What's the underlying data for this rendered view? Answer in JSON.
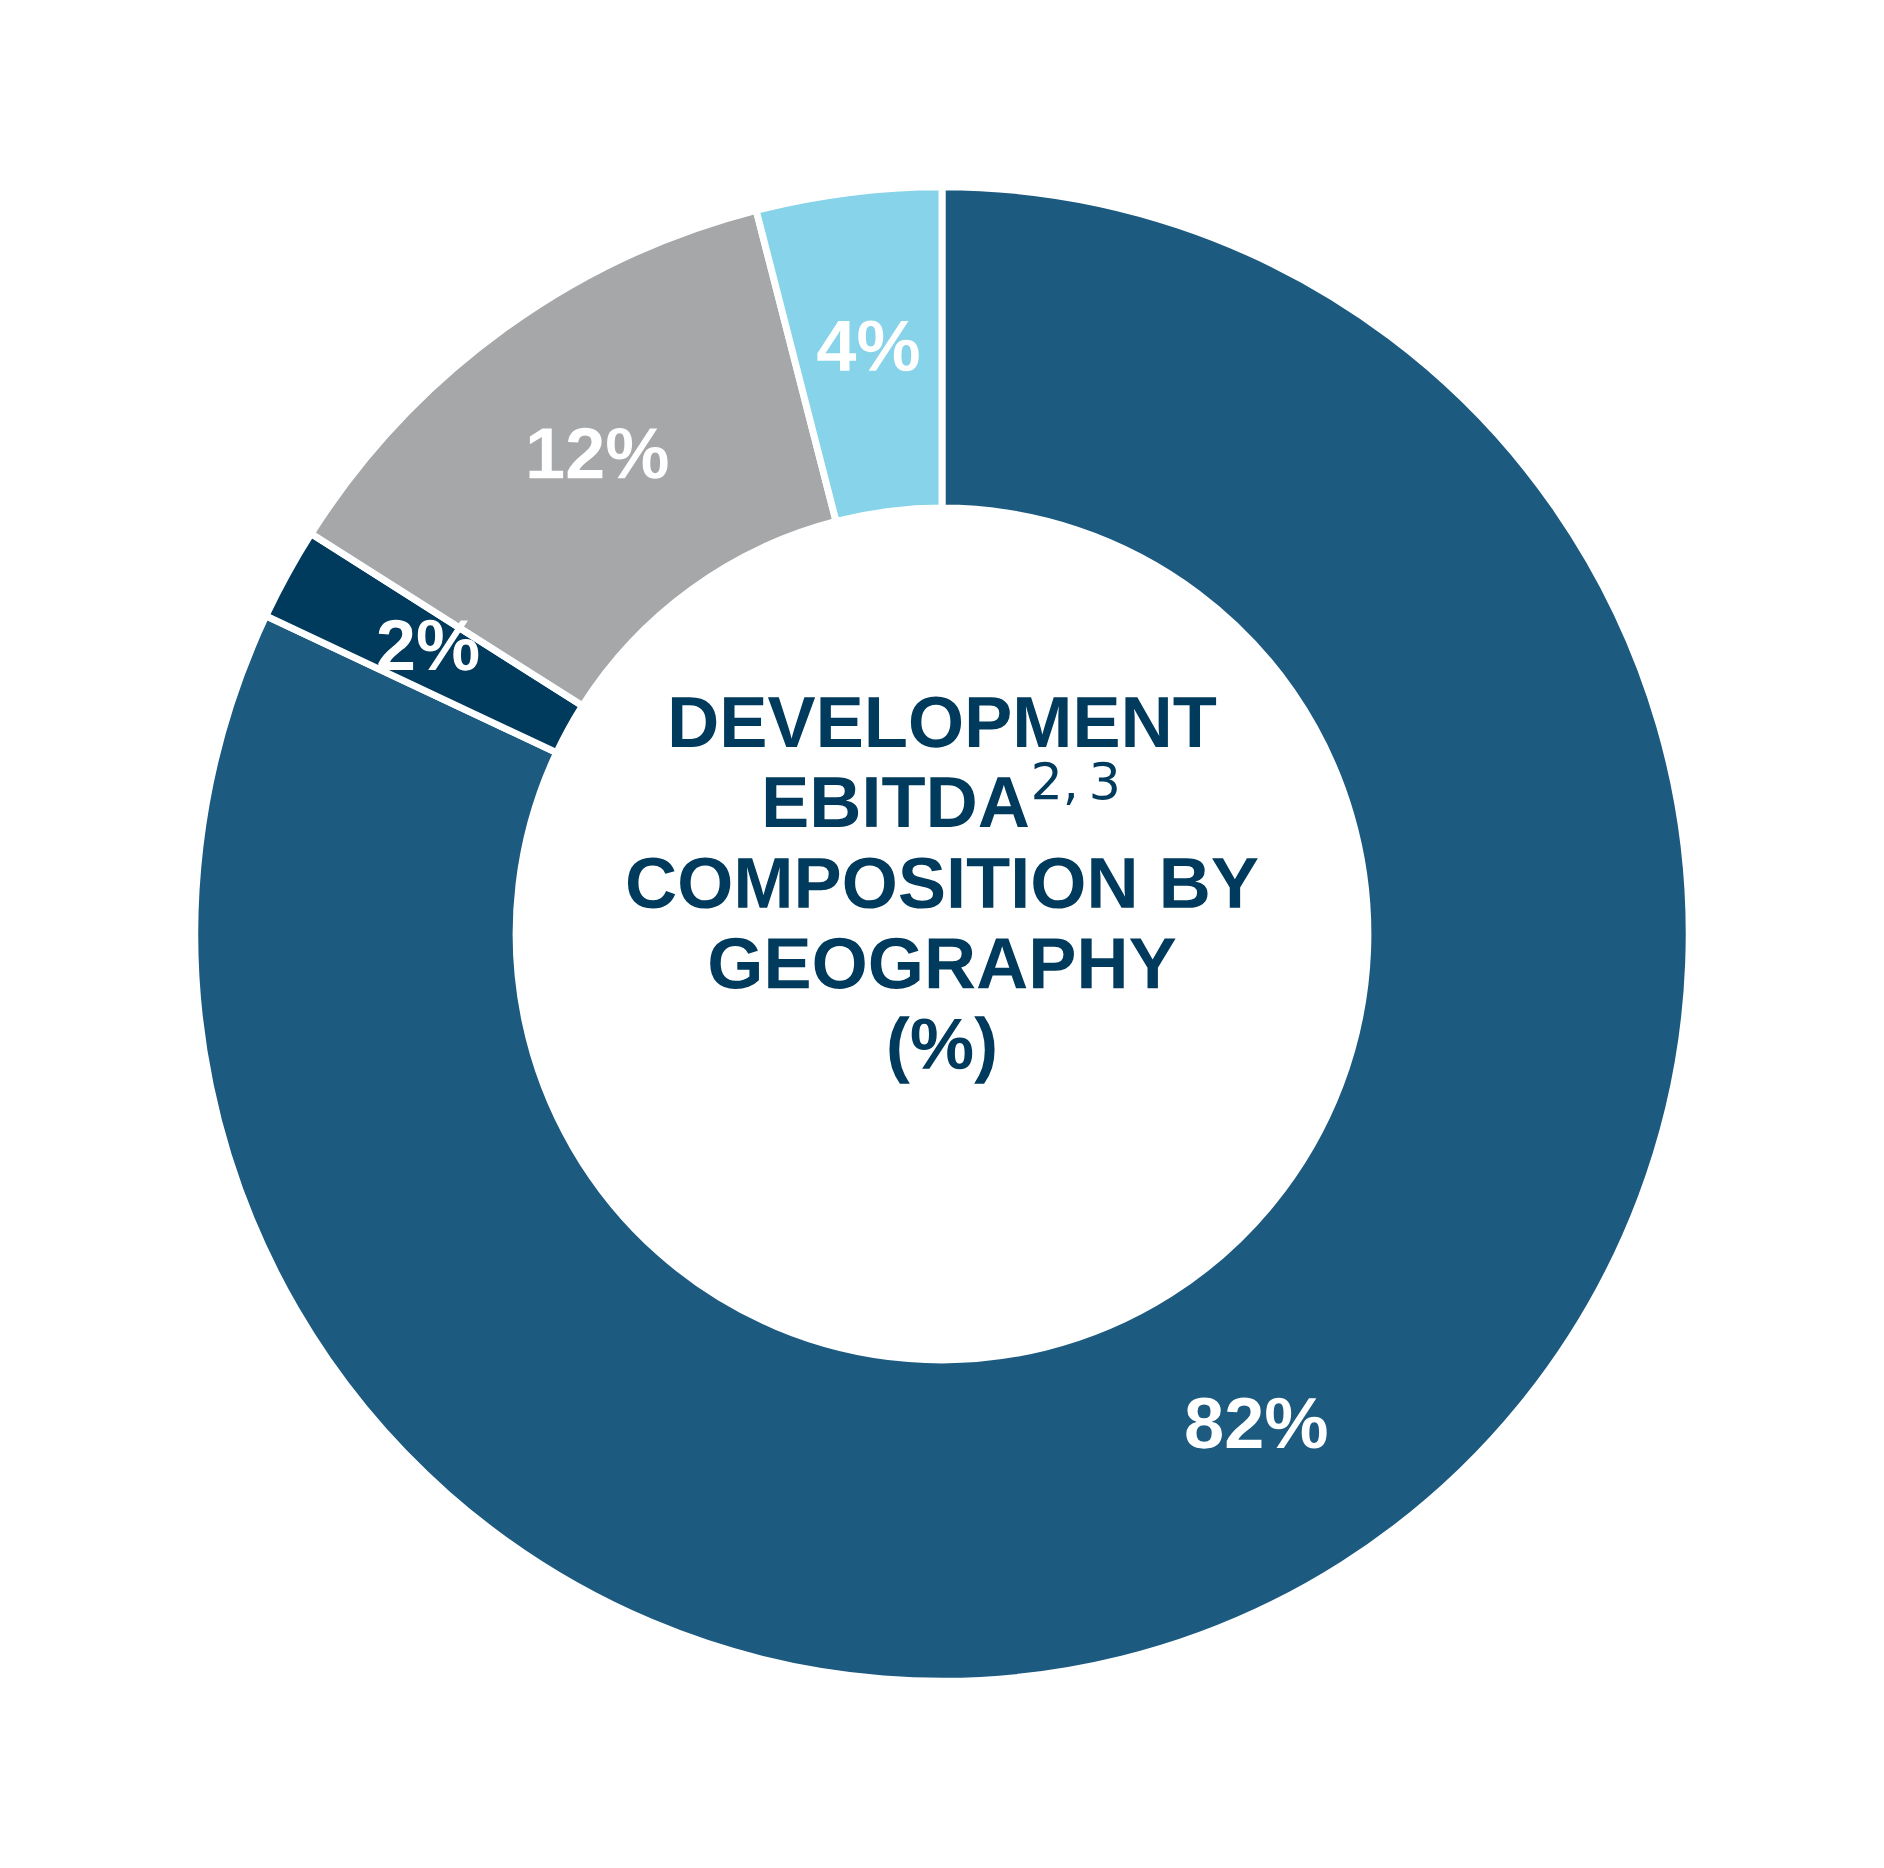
{
  "chart_data": {
    "type": "donut",
    "title": "DEVELOPMENT\nEBITDA$^{2,3}$\nCOMPOSITION BY\nGEOGRAPHY\n(%)",
    "categories": [
      null,
      null,
      null,
      null
    ],
    "values": [
      82,
      2,
      12,
      4
    ],
    "colors": [
      "#1c5a80",
      "#003a5c",
      "#a6a7a9",
      "#86d3ea"
    ],
    "value_labels": [
      "82%",
      "2%",
      "12%",
      "4%"
    ]
  }
}
